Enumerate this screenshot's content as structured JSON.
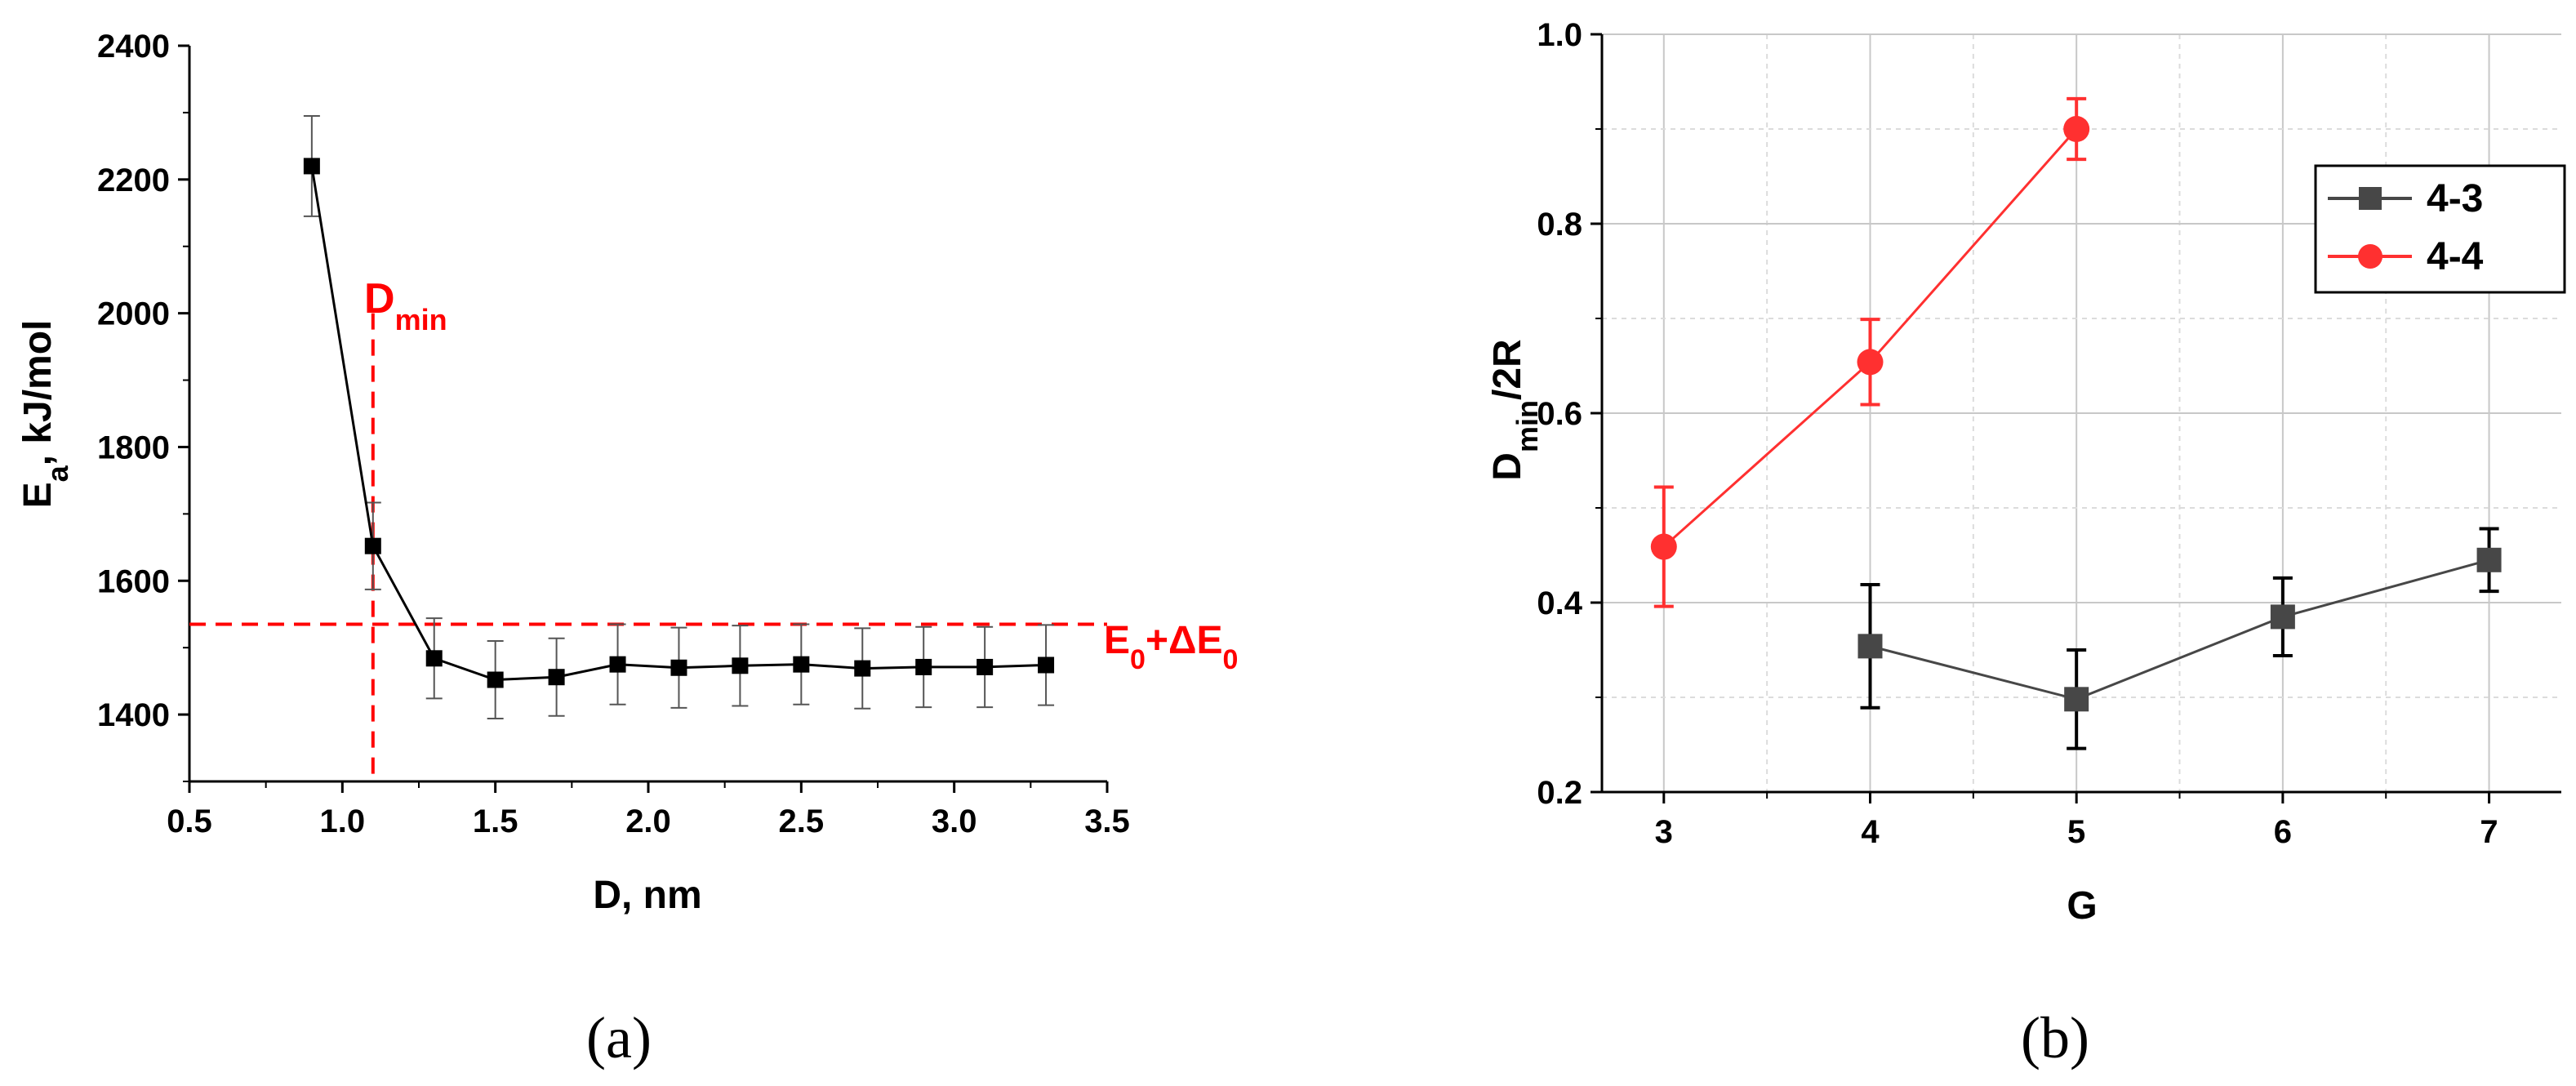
{
  "chart_data": [
    {
      "panel_label": "(a)",
      "type": "scatter",
      "mode": "lines+markers",
      "xlabel": "D, nm",
      "ylabel": "E",
      "ylabel_sub": "a",
      "ylabel_rest": ", kJ/mol",
      "xlim": [
        0.5,
        3.5
      ],
      "ylim": [
        1300,
        2400
      ],
      "xticks": [
        "0.5",
        "1.0",
        "1.5",
        "2.0",
        "2.5",
        "3.0",
        "3.5"
      ],
      "yticks": [
        "1400",
        "1600",
        "1800",
        "2000",
        "2200",
        "2400"
      ],
      "series": [
        {
          "x": [
            0.9,
            1.1,
            1.3,
            1.5,
            1.7,
            1.9,
            2.1,
            2.3,
            2.5,
            2.7,
            2.9,
            3.1,
            3.3
          ],
          "y": [
            2220,
            1652,
            1484,
            1452,
            1456,
            1475,
            1470,
            1473,
            1475,
            1469,
            1471,
            1471,
            1474
          ],
          "err": [
            75,
            65,
            60,
            58,
            58,
            60,
            60,
            60,
            60,
            60,
            60,
            60,
            60
          ],
          "color": "#000000",
          "marker": "square"
        }
      ],
      "annotations": {
        "vline": {
          "x": 1.1,
          "color": "#ff0000",
          "label_main": "D",
          "label_sub": "min"
        },
        "hline": {
          "y": 1535,
          "color": "#ff0000",
          "label_a": "E",
          "label_a_sub": "0",
          "label_b": "+ΔE",
          "label_b_sub": "0"
        }
      },
      "grid": false
    },
    {
      "panel_label": "(b)",
      "type": "line",
      "xlabel": "G",
      "ylabel_main": "D",
      "ylabel_sub": "min",
      "ylabel_rest": "/2R",
      "xlim": [
        2.7,
        7.35
      ],
      "ylim": [
        0.2,
        1.0
      ],
      "xticks": [
        "3",
        "4",
        "5",
        "6",
        "7"
      ],
      "yticks": [
        "0.2",
        "0.4",
        "0.6",
        "0.8",
        "1.0"
      ],
      "grid": true,
      "legend_position": "top-right",
      "series": [
        {
          "name": "4-3",
          "x": [
            4,
            5,
            6,
            7
          ],
          "y": [
            0.354,
            0.298,
            0.385,
            0.445
          ],
          "err": [
            0.065,
            0.052,
            0.041,
            0.033
          ],
          "color": "#474747",
          "marker": "square"
        },
        {
          "name": "4-4",
          "x": [
            3,
            4,
            5
          ],
          "y": [
            0.459,
            0.654,
            0.9
          ],
          "err": [
            0.063,
            0.045,
            0.032
          ],
          "color": "#ff3030",
          "marker": "circle"
        }
      ]
    }
  ]
}
